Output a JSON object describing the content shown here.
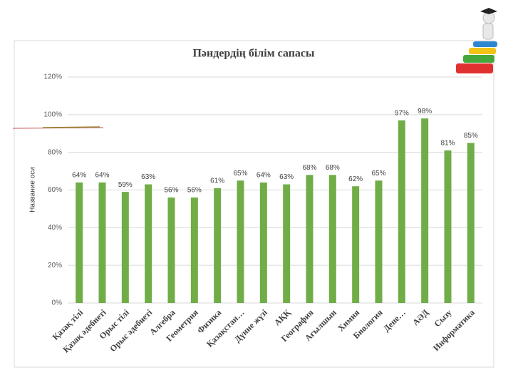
{
  "chart_data": {
    "type": "bar",
    "title": "Пәндердің білім сапасы",
    "y_label": "Название оси",
    "categories": [
      "Қазақ тілі",
      "Қазақ әдебиеті",
      "Орыс тілі",
      "Орыс әдебиеті",
      "Алгебра",
      "Геометрия",
      "Физика",
      "Қазақстан…",
      "Дүние жүзі",
      "АҚҚ",
      "География",
      "Ағылшын",
      "Химия",
      "Биология",
      "Дене…",
      "АӘД",
      "Сызу",
      "Информатика"
    ],
    "values": [
      64,
      64,
      59,
      63,
      56,
      56,
      61,
      65,
      64,
      63,
      68,
      68,
      62,
      65,
      97,
      98,
      81,
      85
    ],
    "value_labels": [
      "64%",
      "64%",
      "59%",
      "63%",
      "56%",
      "56%",
      "61%",
      "65%",
      "64%",
      "63%",
      "68%",
      "68%",
      "62%",
      "65%",
      "97%",
      "98%",
      "81%",
      "85%"
    ],
    "color": "#70ad47",
    "ylim": [
      0,
      120
    ],
    "yticks": [
      {
        "value": 0,
        "label": "0%"
      },
      {
        "value": 20,
        "label": "20%"
      },
      {
        "value": 40,
        "label": "40%"
      },
      {
        "value": 60,
        "label": "60%"
      },
      {
        "value": 80,
        "label": "80%"
      },
      {
        "value": 100,
        "label": "100%"
      },
      {
        "value": 120,
        "label": "120%"
      }
    ],
    "grid": true
  }
}
